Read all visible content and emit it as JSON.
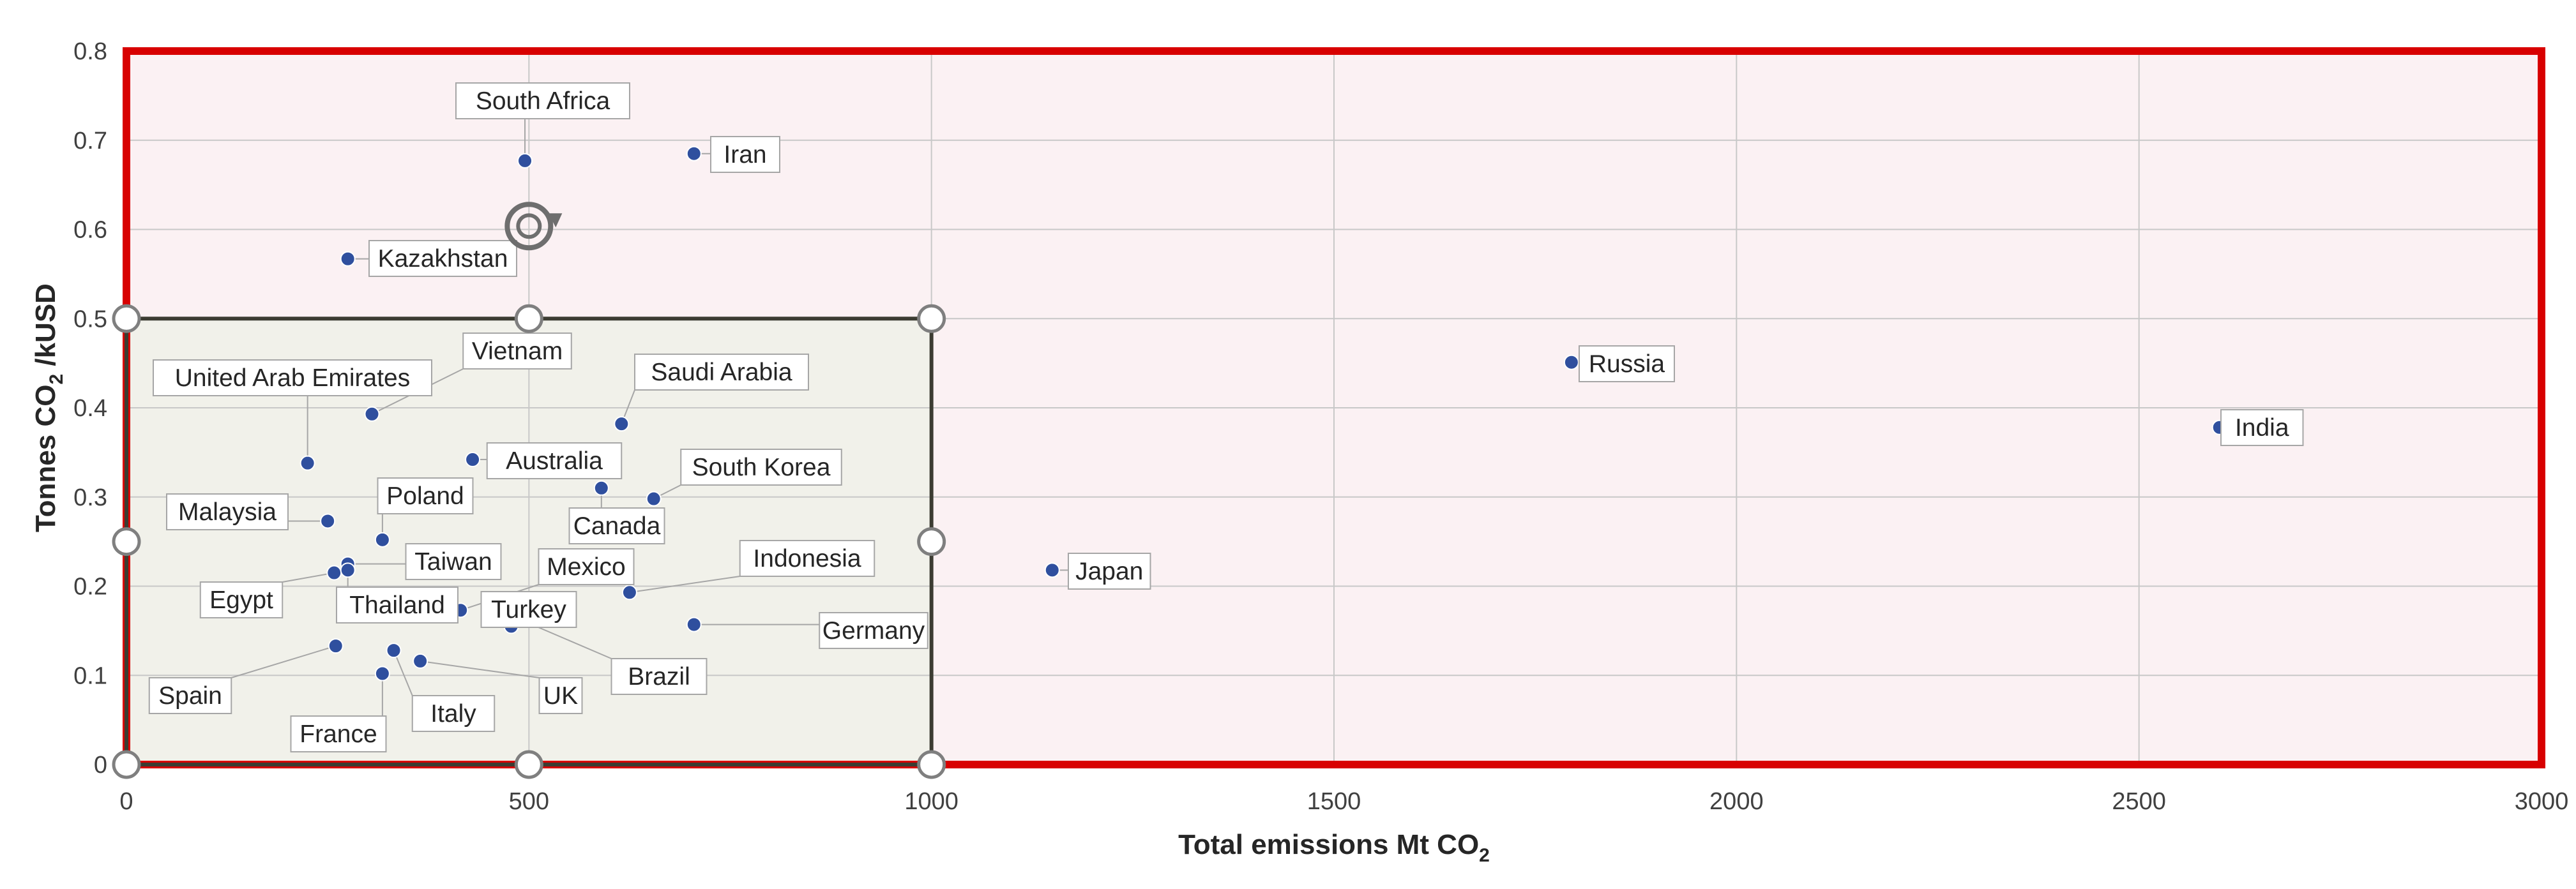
{
  "chart_data": {
    "type": "scatter",
    "xlabel": "Total emissions Mt CO",
    "xlabel_sub": "2",
    "ylabel_pre": "Tonnes  CO",
    "ylabel_sub": "2",
    "ylabel_post": " /kUSD",
    "xlim": [
      0,
      3000
    ],
    "ylim": [
      0,
      0.8
    ],
    "xticks": [
      0,
      500,
      1000,
      1500,
      2000,
      2500,
      3000
    ],
    "yticks": [
      0,
      0.1,
      0.2,
      0.3,
      0.4,
      0.5,
      0.6,
      0.7,
      0.8
    ],
    "grid": true,
    "colors": {
      "point": "#2f4f9e",
      "plot_background": "#fbf1f3",
      "zoom_background": "#f1f1ea",
      "plot_border": "#d80000",
      "zoom_border": "#3c3c32",
      "grid": "#c8c8c8"
    },
    "points": [
      {
        "label": "South Africa",
        "x": 495,
        "y": 0.677
      },
      {
        "label": "Iran",
        "x": 705,
        "y": 0.685
      },
      {
        "label": "Kazakhstan",
        "x": 275,
        "y": 0.567
      },
      {
        "label": "Russia",
        "x": 1795,
        "y": 0.451
      },
      {
        "label": "India",
        "x": 2600,
        "y": 0.378
      },
      {
        "label": "Japan",
        "x": 1150,
        "y": 0.218
      },
      {
        "label": "United Arab Emirates",
        "x": 225,
        "y": 0.338
      },
      {
        "label": "Vietnam",
        "x": 305,
        "y": 0.393
      },
      {
        "label": "Saudi Arabia",
        "x": 615,
        "y": 0.382
      },
      {
        "label": "Australia",
        "x": 430,
        "y": 0.342
      },
      {
        "label": "South Korea",
        "x": 655,
        "y": 0.298
      },
      {
        "label": "Canada",
        "x": 590,
        "y": 0.31
      },
      {
        "label": "Malaysia",
        "x": 250,
        "y": 0.273
      },
      {
        "label": "Poland",
        "x": 318,
        "y": 0.252
      },
      {
        "label": "Taiwan",
        "x": 275,
        "y": 0.225
      },
      {
        "label": "Egypt",
        "x": 258,
        "y": 0.215
      },
      {
        "label": "Thailand",
        "x": 275,
        "y": 0.218
      },
      {
        "label": "Mexico",
        "x": 415,
        "y": 0.173
      },
      {
        "label": "Indonesia",
        "x": 625,
        "y": 0.193
      },
      {
        "label": "Turkey",
        "x": 478,
        "y": 0.155
      },
      {
        "label": "Germany",
        "x": 705,
        "y": 0.157
      },
      {
        "label": "Brazil",
        "x": 470,
        "y": 0.17
      },
      {
        "label": "Spain",
        "x": 260,
        "y": 0.133
      },
      {
        "label": "France",
        "x": 318,
        "y": 0.102
      },
      {
        "label": "Italy",
        "x": 332,
        "y": 0.128
      },
      {
        "label": "UK",
        "x": 365,
        "y": 0.116
      }
    ]
  }
}
